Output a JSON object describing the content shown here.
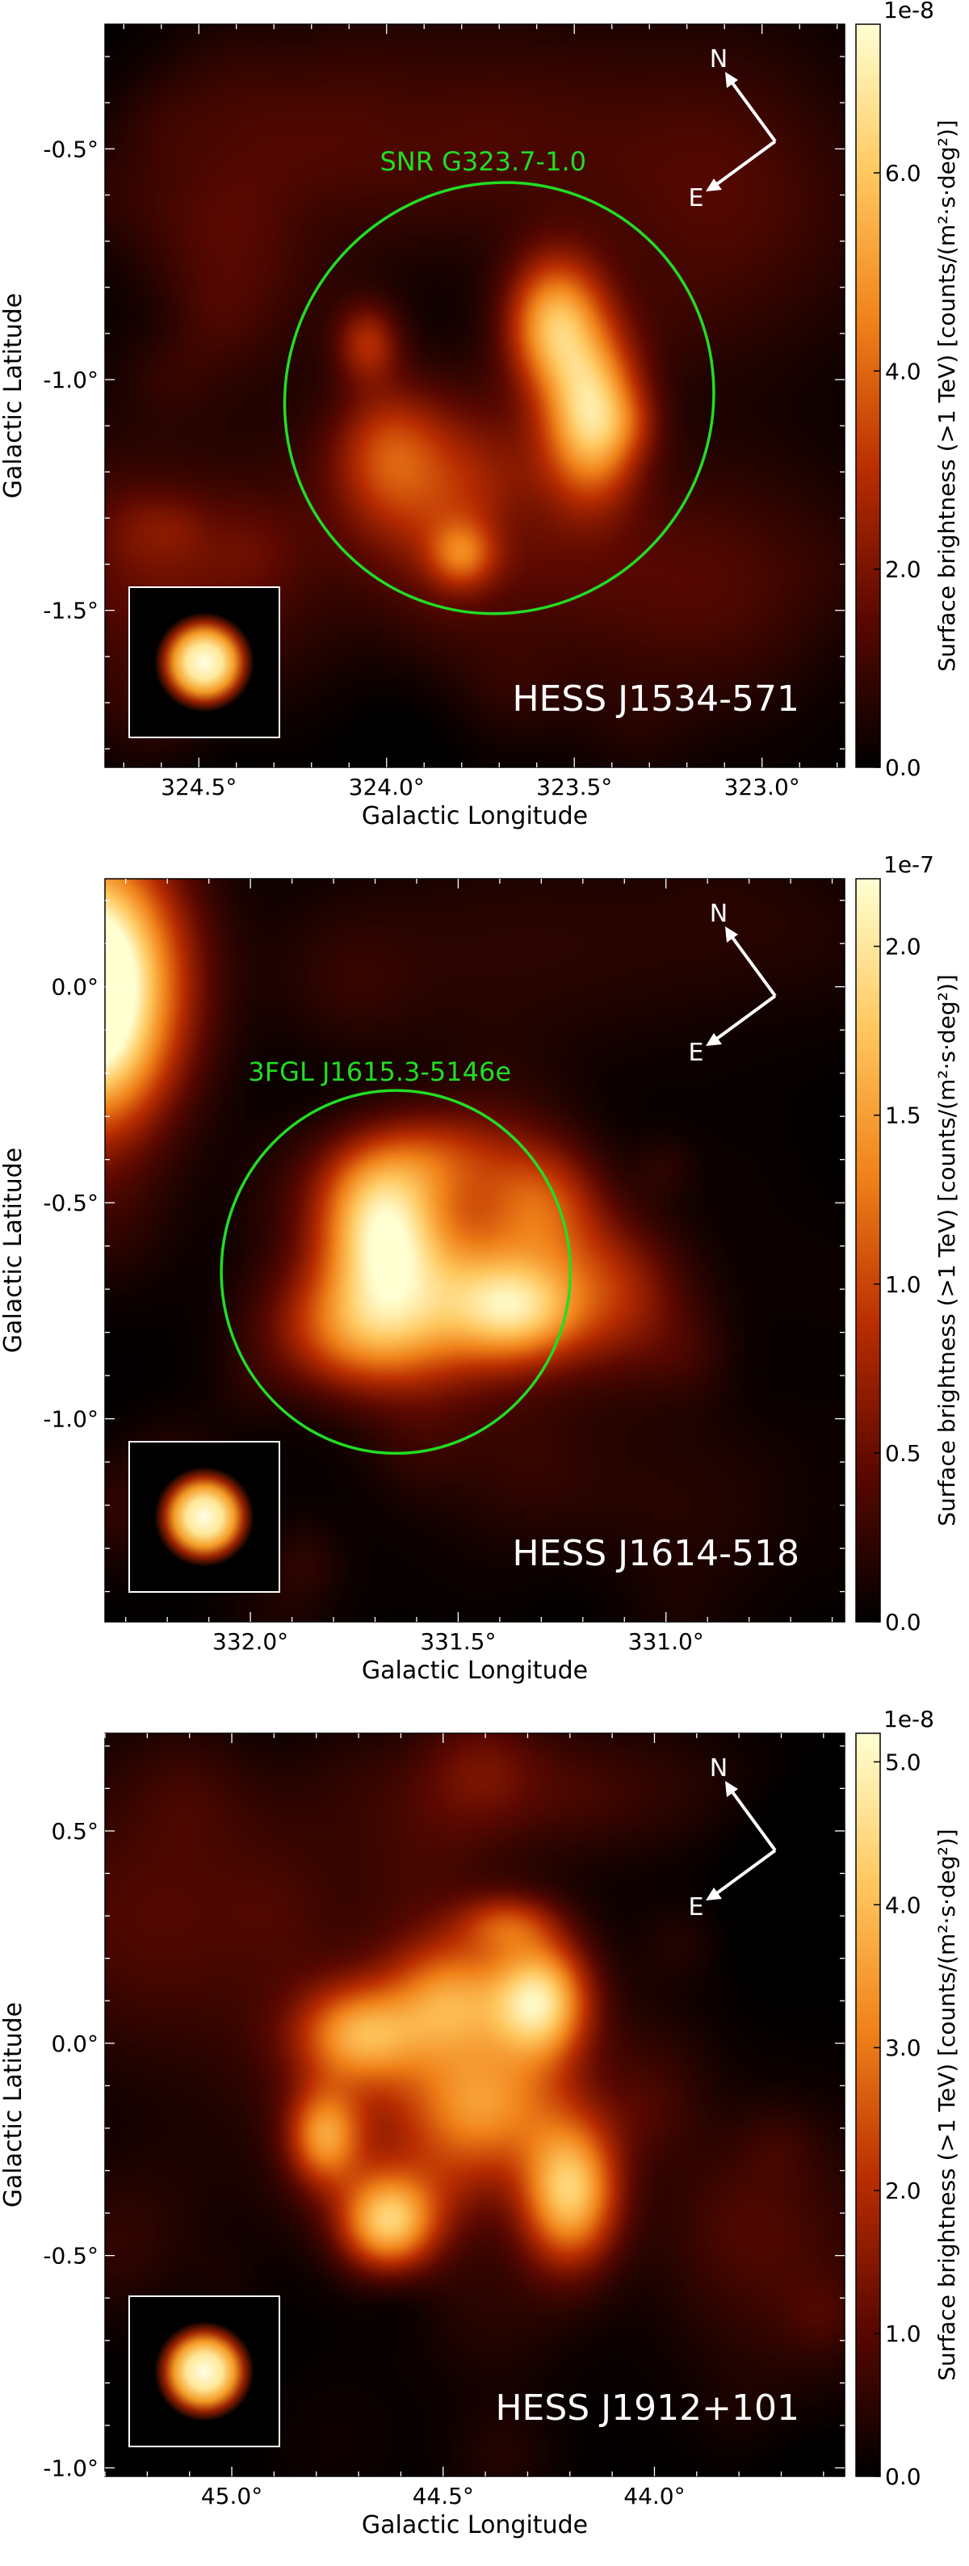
{
  "chart_data": [
    {
      "type": "heatmap",
      "title": "",
      "source_label": "HESS J1534-571",
      "xlabel": "Galactic Longitude",
      "ylabel": "Galactic Latitude",
      "xlim": [
        324.75,
        322.78
      ],
      "ylim": [
        -1.84,
        -0.23
      ],
      "xticks": [
        324.5,
        324.0,
        323.5,
        323.0
      ],
      "xtick_labels": [
        "324.5°",
        "324.0°",
        "323.5°",
        "323.0°"
      ],
      "yticks": [
        -0.5,
        -1.0,
        -1.5
      ],
      "ytick_labels": [
        "-0.5°",
        "-1.0°",
        "-1.5°"
      ],
      "colorbar": {
        "label": "Surface brightness (>1 TeV) [counts/(m²·s·deg²)]",
        "scale_label": "1e-8",
        "ticks": [
          0.0,
          2.0,
          4.0,
          6.0
        ],
        "tick_labels": [
          "0.0",
          "2.0",
          "4.0",
          "6.0"
        ],
        "range": [
          0.0,
          7.5
        ]
      },
      "annotation": {
        "label": "SNR G323.7-1.0",
        "color": "#22dd22",
        "center_l": 323.7,
        "center_b": -1.04,
        "semi_major_deg": 0.58,
        "semi_minor_deg": 0.46,
        "angle_deg": 50
      },
      "compass": {
        "north_label": "N",
        "east_label": "E"
      },
      "psf_inset": true,
      "blobs": [
        {
          "l": 323.55,
          "b": -0.88,
          "sl": 0.09,
          "sb": 0.1,
          "amp": 5.2
        },
        {
          "l": 323.45,
          "b": -1.08,
          "sl": 0.09,
          "sb": 0.12,
          "amp": 6.0
        },
        {
          "l": 323.85,
          "b": -1.25,
          "sl": 0.18,
          "sb": 0.15,
          "amp": 2.6
        },
        {
          "l": 323.8,
          "b": -1.38,
          "sl": 0.06,
          "sb": 0.05,
          "amp": 2.5
        },
        {
          "l": 324.05,
          "b": -0.92,
          "sl": 0.06,
          "sb": 0.06,
          "amp": 2.4
        },
        {
          "l": 324.0,
          "b": -1.15,
          "sl": 0.1,
          "sb": 0.1,
          "amp": 2.0
        },
        {
          "l": 324.55,
          "b": -1.4,
          "sl": 0.3,
          "sb": 0.22,
          "amp": 1.6
        },
        {
          "l": 323.9,
          "b": -0.45,
          "sl": 0.35,
          "sb": 0.18,
          "amp": 1.4
        },
        {
          "l": 323.1,
          "b": -0.6,
          "sl": 0.3,
          "sb": 0.25,
          "amp": 1.3
        },
        {
          "l": 323.2,
          "b": -1.45,
          "sl": 0.35,
          "sb": 0.2,
          "amp": 1.4
        },
        {
          "l": 324.4,
          "b": -0.7,
          "sl": 0.2,
          "sb": 0.2,
          "amp": 1.2
        }
      ]
    },
    {
      "type": "heatmap",
      "title": "",
      "source_label": "HESS J1614-518",
      "xlabel": "Galactic Longitude",
      "ylabel": "Galactic Latitude",
      "xlim": [
        332.35,
        330.57
      ],
      "ylim": [
        -1.47,
        0.25
      ],
      "xticks": [
        332.0,
        331.5,
        331.0
      ],
      "xtick_labels": [
        "332.0°",
        "331.5°",
        "331.0°"
      ],
      "yticks": [
        0.0,
        -0.5,
        -1.0
      ],
      "ytick_labels": [
        "0.0°",
        "-0.5°",
        "-1.0°"
      ],
      "colorbar": {
        "label": "Surface brightness (>1 TeV) [counts/(m²·s·deg²)]",
        "scale_label": "1e-7",
        "ticks": [
          0.0,
          0.5,
          1.0,
          1.5,
          2.0
        ],
        "tick_labels": [
          "0.0",
          "0.5",
          "1.0",
          "1.5",
          "2.0"
        ],
        "range": [
          0.0,
          2.2
        ]
      },
      "annotation": {
        "label": "3FGL J1615.3-5146e",
        "color": "#22dd22",
        "center_l": 331.65,
        "center_b": -0.66,
        "semi_major_deg": 0.42,
        "semi_minor_deg": 0.42,
        "angle_deg": 0
      },
      "compass": {
        "north_label": "N",
        "east_label": "E"
      },
      "psf_inset": true,
      "blobs": [
        {
          "l": 332.4,
          "b": 0.0,
          "sl": 0.15,
          "sb": 0.22,
          "amp": 3.0
        },
        {
          "l": 331.68,
          "b": -0.55,
          "sl": 0.1,
          "sb": 0.12,
          "amp": 1.6
        },
        {
          "l": 331.55,
          "b": -0.72,
          "sl": 0.2,
          "sb": 0.14,
          "amp": 1.2
        },
        {
          "l": 331.35,
          "b": -0.75,
          "sl": 0.1,
          "sb": 0.08,
          "amp": 1.0
        },
        {
          "l": 331.3,
          "b": -0.5,
          "sl": 0.1,
          "sb": 0.1,
          "amp": 0.8
        },
        {
          "l": 331.55,
          "b": -0.4,
          "sl": 0.12,
          "sb": 0.08,
          "amp": 0.7
        },
        {
          "l": 331.15,
          "b": -0.7,
          "sl": 0.12,
          "sb": 0.12,
          "amp": 0.7
        },
        {
          "l": 331.75,
          "b": -0.8,
          "sl": 0.15,
          "sb": 0.1,
          "amp": 0.8
        },
        {
          "l": 331.3,
          "b": 0.1,
          "sl": 0.45,
          "sb": 0.2,
          "amp": 0.2
        },
        {
          "l": 331.0,
          "b": -1.2,
          "sl": 0.4,
          "sb": 0.2,
          "amp": 0.18
        }
      ]
    },
    {
      "type": "heatmap",
      "title": "",
      "source_label": "HESS J1912+101",
      "xlabel": "Galactic Longitude",
      "ylabel": "Galactic Latitude",
      "xlim": [
        45.3,
        43.55
      ],
      "ylim": [
        -1.02,
        0.73
      ],
      "xticks": [
        45.0,
        44.5,
        44.0
      ],
      "xtick_labels": [
        "45.0°",
        "44.5°",
        "44.0°"
      ],
      "yticks": [
        0.5,
        0.0,
        -0.5,
        -1.0
      ],
      "ytick_labels": [
        "0.5°",
        "0.0°",
        "-0.5°",
        "-1.0°"
      ],
      "colorbar": {
        "label": "Surface brightness (>1 TeV) [counts/(m²·s·deg²)]",
        "scale_label": "1e-8",
        "ticks": [
          0.0,
          1.0,
          2.0,
          3.0,
          4.0,
          5.0
        ],
        "tick_labels": [
          "0.0",
          "1.0",
          "2.0",
          "3.0",
          "4.0",
          "5.0"
        ],
        "range": [
          0.0,
          5.2
        ]
      },
      "annotation": null,
      "compass": {
        "north_label": "N",
        "east_label": "E"
      },
      "psf_inset": true,
      "blobs": [
        {
          "l": 44.27,
          "b": 0.1,
          "sl": 0.08,
          "sb": 0.1,
          "amp": 4.0
        },
        {
          "l": 44.2,
          "b": -0.35,
          "sl": 0.08,
          "sb": 0.12,
          "amp": 4.0
        },
        {
          "l": 44.63,
          "b": -0.42,
          "sl": 0.08,
          "sb": 0.08,
          "amp": 3.8
        },
        {
          "l": 44.78,
          "b": -0.22,
          "sl": 0.06,
          "sb": 0.08,
          "amp": 2.8
        },
        {
          "l": 44.7,
          "b": 0.02,
          "sl": 0.1,
          "sb": 0.08,
          "amp": 2.6
        },
        {
          "l": 44.48,
          "b": 0.1,
          "sl": 0.1,
          "sb": 0.1,
          "amp": 2.4
        },
        {
          "l": 44.4,
          "b": -0.15,
          "sl": 0.12,
          "sb": 0.1,
          "amp": 2.2
        },
        {
          "l": 44.55,
          "b": -0.05,
          "sl": 0.25,
          "sb": 0.25,
          "amp": 1.4
        },
        {
          "l": 44.35,
          "b": 0.28,
          "sl": 0.08,
          "sb": 0.05,
          "amp": 1.6
        },
        {
          "l": 45.2,
          "b": 0.3,
          "sl": 0.25,
          "sb": 0.25,
          "amp": 0.9
        },
        {
          "l": 44.2,
          "b": 0.6,
          "sl": 0.3,
          "sb": 0.12,
          "amp": 0.7
        },
        {
          "l": 43.7,
          "b": -0.5,
          "sl": 0.2,
          "sb": 0.25,
          "amp": 0.7
        }
      ]
    }
  ]
}
